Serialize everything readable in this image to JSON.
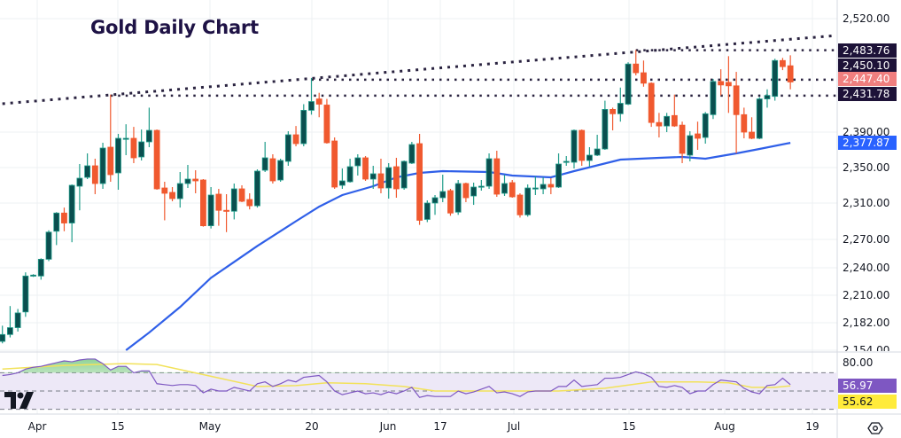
{
  "title": "Gold Daily Chart",
  "colors": {
    "bull_body": "#0a4f4f",
    "bull_border": "#1f9c8a",
    "bear": "#f0592f",
    "ma50": "#2f5fe8",
    "trendline": "#2a2340",
    "rsi": "#7e57c2",
    "rsi_ma": "#f2e25a",
    "rsi_band": "#ede8f7",
    "label_dark": "#1d1238",
    "label_red": "#f07f7f",
    "label_blue": "#2962ff",
    "label_yellow": "#ffeb3b"
  },
  "price_axis": {
    "ticks": [
      "2,520.00",
      "2,390.00",
      "2,350.00",
      "2,310.00",
      "2,270.00",
      "2,240.00",
      "2,210.00",
      "2,182.00",
      "2,154.00"
    ]
  },
  "price_labels": [
    {
      "text": "2,483.76",
      "style": "dark"
    },
    {
      "text": "2,450.10",
      "style": "dark"
    },
    {
      "text": "2,447.40",
      "style": "red"
    },
    {
      "text": "2,431.78",
      "style": "dark"
    },
    {
      "text": "2,377.87",
      "style": "blue"
    }
  ],
  "rsi_axis": {
    "ticks": [
      "80.00"
    ],
    "rsi_label": "56.97",
    "rsi_ma_label": "55.62",
    "bands": [
      30,
      50,
      70
    ]
  },
  "date_axis": [
    "Apr",
    "15",
    "May",
    "20",
    "Jun",
    "17",
    "Jul",
    "15",
    "Aug",
    "19"
  ],
  "chart_data": {
    "type": "candlestick",
    "title": "Gold Daily Chart",
    "ohlc": [
      [
        2163,
        2179,
        2161,
        2170
      ],
      [
        2170,
        2199,
        2167,
        2177
      ],
      [
        2177,
        2196,
        2173,
        2192
      ],
      [
        2193,
        2235,
        2188,
        2231
      ],
      [
        2231,
        2233,
        2230,
        2232
      ],
      [
        2231,
        2250,
        2227,
        2249
      ],
      [
        2249,
        2280,
        2247,
        2278
      ],
      [
        2279,
        2300,
        2264,
        2299
      ],
      [
        2299,
        2305,
        2279,
        2288
      ],
      [
        2288,
        2331,
        2267,
        2330
      ],
      [
        2329,
        2354,
        2302,
        2338
      ],
      [
        2339,
        2366,
        2337,
        2352
      ],
      [
        2352,
        2360,
        2320,
        2332
      ],
      [
        2332,
        2378,
        2326,
        2372
      ],
      [
        2373,
        2433,
        2334,
        2342
      ],
      [
        2344,
        2388,
        2325,
        2383
      ],
      [
        2382,
        2399,
        2364,
        2383
      ],
      [
        2383,
        2396,
        2355,
        2361
      ],
      [
        2362,
        2393,
        2358,
        2379
      ],
      [
        2379,
        2418,
        2373,
        2392
      ],
      [
        2392,
        2393,
        2325,
        2326
      ],
      [
        2327,
        2334,
        2291,
        2321
      ],
      [
        2322,
        2328,
        2312,
        2315
      ],
      [
        2315,
        2345,
        2305,
        2332
      ],
      [
        2332,
        2353,
        2327,
        2337
      ],
      [
        2337,
        2347,
        2321,
        2335
      ],
      [
        2336,
        2337,
        2284,
        2285
      ],
      [
        2285,
        2328,
        2282,
        2319
      ],
      [
        2320,
        2326,
        2285,
        2302
      ],
      [
        2302,
        2320,
        2278,
        2301
      ],
      [
        2301,
        2332,
        2292,
        2326
      ],
      [
        2326,
        2330,
        2311,
        2312
      ],
      [
        2314,
        2321,
        2303,
        2307
      ],
      [
        2307,
        2348,
        2305,
        2346
      ],
      [
        2347,
        2379,
        2345,
        2361
      ],
      [
        2360,
        2365,
        2332,
        2335
      ],
      [
        2336,
        2360,
        2334,
        2358
      ],
      [
        2357,
        2391,
        2352,
        2387
      ],
      [
        2387,
        2397,
        2374,
        2377
      ],
      [
        2377,
        2422,
        2374,
        2415
      ],
      [
        2415,
        2452,
        2410,
        2425
      ],
      [
        2428,
        2435,
        2407,
        2422
      ],
      [
        2421,
        2428,
        2377,
        2378
      ],
      [
        2380,
        2384,
        2326,
        2328
      ],
      [
        2330,
        2349,
        2326,
        2335
      ],
      [
        2334,
        2360,
        2333,
        2351
      ],
      [
        2352,
        2365,
        2341,
        2361
      ],
      [
        2361,
        2363,
        2335,
        2337
      ],
      [
        2337,
        2352,
        2326,
        2343
      ],
      [
        2343,
        2360,
        2321,
        2327
      ],
      [
        2327,
        2355,
        2315,
        2350
      ],
      [
        2351,
        2361,
        2316,
        2326
      ],
      [
        2327,
        2358,
        2325,
        2357
      ],
      [
        2355,
        2379,
        2354,
        2376
      ],
      [
        2377,
        2388,
        2286,
        2291
      ],
      [
        2292,
        2313,
        2289,
        2310
      ],
      [
        2310,
        2319,
        2297,
        2316
      ],
      [
        2316,
        2342,
        2311,
        2323
      ],
      [
        2324,
        2326,
        2296,
        2299
      ],
      [
        2300,
        2336,
        2297,
        2332
      ],
      [
        2332,
        2333,
        2311,
        2316
      ],
      [
        2318,
        2333,
        2308,
        2328
      ],
      [
        2329,
        2336,
        2324,
        2329
      ],
      [
        2329,
        2366,
        2326,
        2360
      ],
      [
        2360,
        2369,
        2317,
        2320
      ],
      [
        2321,
        2342,
        2318,
        2332
      ],
      [
        2333,
        2336,
        2316,
        2317
      ],
      [
        2319,
        2321,
        2294,
        2297
      ],
      [
        2297,
        2331,
        2295,
        2327
      ],
      [
        2327,
        2340,
        2319,
        2327
      ],
      [
        2326,
        2339,
        2320,
        2331
      ],
      [
        2331,
        2338,
        2320,
        2328
      ],
      [
        2328,
        2366,
        2327,
        2354
      ],
      [
        2356,
        2363,
        2352,
        2357
      ],
      [
        2356,
        2393,
        2349,
        2392
      ],
      [
        2392,
        2393,
        2352,
        2358
      ],
      [
        2358,
        2373,
        2351,
        2364
      ],
      [
        2364,
        2387,
        2363,
        2371
      ],
      [
        2371,
        2426,
        2370,
        2416
      ],
      [
        2416,
        2418,
        2392,
        2411
      ],
      [
        2411,
        2441,
        2402,
        2423
      ],
      [
        2422,
        2470,
        2421,
        2468
      ],
      [
        2468,
        2484,
        2455,
        2458
      ],
      [
        2458,
        2472,
        2442,
        2446
      ],
      [
        2446,
        2447,
        2396,
        2401
      ],
      [
        2401,
        2412,
        2384,
        2397
      ],
      [
        2397,
        2412,
        2390,
        2408
      ],
      [
        2409,
        2433,
        2396,
        2397
      ],
      [
        2398,
        2402,
        2355,
        2366
      ],
      [
        2364,
        2391,
        2357,
        2386
      ],
      [
        2388,
        2402,
        2370,
        2383
      ],
      [
        2384,
        2413,
        2377,
        2411
      ],
      [
        2410,
        2451,
        2405,
        2448
      ],
      [
        2448,
        2462,
        2432,
        2444
      ],
      [
        2447,
        2477,
        2412,
        2443
      ],
      [
        2443,
        2459,
        2366,
        2410
      ],
      [
        2410,
        2418,
        2383,
        2390
      ],
      [
        2390,
        2407,
        2382,
        2383
      ],
      [
        2383,
        2430,
        2382,
        2428
      ],
      [
        2428,
        2439,
        2418,
        2432
      ],
      [
        2431,
        2474,
        2426,
        2472
      ],
      [
        2472,
        2475,
        2461,
        2465
      ],
      [
        2466,
        2478,
        2439,
        2447.4
      ]
    ],
    "moving_average": [
      [
        16,
        2154
      ],
      [
        19,
        2172
      ],
      [
        23,
        2198
      ],
      [
        27,
        2229
      ],
      [
        33,
        2263
      ],
      [
        38,
        2290
      ],
      [
        41,
        2306
      ],
      [
        44,
        2319
      ],
      [
        48,
        2329
      ],
      [
        51,
        2339
      ],
      [
        54,
        2344
      ],
      [
        57,
        2346
      ],
      [
        63,
        2345
      ],
      [
        66,
        2341
      ],
      [
        71,
        2339
      ],
      [
        74,
        2346
      ],
      [
        80,
        2359
      ],
      [
        85,
        2361
      ],
      [
        88,
        2362
      ],
      [
        91,
        2360
      ],
      [
        95,
        2366
      ],
      [
        98,
        2371
      ],
      [
        102,
        2377.87
      ]
    ],
    "trendline": [
      [
        0,
        2422.5
      ],
      [
        108,
        2500.7
      ]
    ],
    "horizontal_levels": [
      {
        "value": 2483.76,
        "from": 82
      },
      {
        "value": 2450.1,
        "from": 40
      },
      {
        "value": 2431.78,
        "from": 14
      }
    ],
    "rsi": [
      67,
      68,
      70,
      74,
      76,
      77,
      79,
      81,
      83,
      82,
      84,
      85,
      85,
      80,
      73,
      77,
      77,
      70,
      72,
      72,
      58,
      57,
      56,
      57,
      57,
      56,
      48,
      52,
      50,
      50,
      54,
      52,
      50,
      58,
      60,
      55,
      58,
      62,
      60,
      65,
      66,
      67,
      60,
      50,
      46,
      48,
      50,
      47,
      48,
      46,
      49,
      47,
      50,
      54,
      43,
      45,
      44,
      44,
      44,
      50,
      47,
      49,
      52,
      55,
      48,
      49,
      47,
      44,
      49,
      50,
      50,
      50,
      55,
      55,
      62,
      55,
      56,
      57,
      64,
      64,
      65,
      68,
      71,
      69,
      65,
      55,
      54,
      56,
      54,
      47,
      50,
      50,
      57,
      62,
      61,
      60,
      53,
      49,
      47,
      56,
      57,
      64,
      56.97
    ],
    "rsi_ma": [
      [
        0,
        74
      ],
      [
        8,
        78
      ],
      [
        16,
        80
      ],
      [
        20,
        79
      ],
      [
        26,
        68
      ],
      [
        33,
        55
      ],
      [
        38,
        56
      ],
      [
        42,
        59
      ],
      [
        47,
        58
      ],
      [
        52,
        55
      ],
      [
        56,
        50
      ],
      [
        72,
        50
      ],
      [
        78,
        53
      ],
      [
        84,
        60
      ],
      [
        90,
        60
      ],
      [
        94,
        59
      ],
      [
        97,
        54
      ],
      [
        100,
        54
      ],
      [
        102,
        55.62
      ]
    ],
    "price_ylim": [
      2154,
      2520
    ],
    "rsi_ylim": [
      30,
      80
    ],
    "grid": true
  }
}
